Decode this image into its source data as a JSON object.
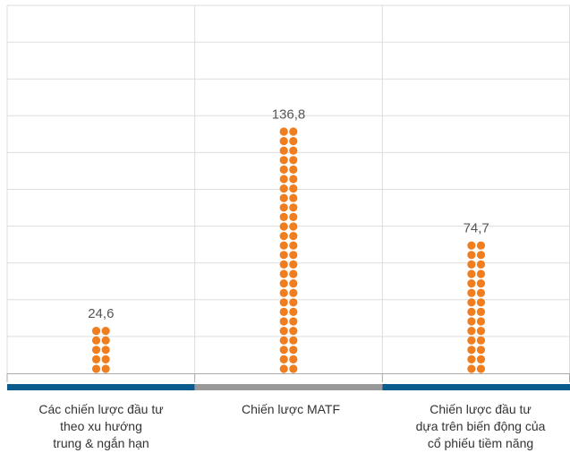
{
  "chart_data": {
    "type": "bar",
    "style": "dot-column",
    "categories": [
      "Các chiến lược đầu tư\ntheo xu hướng\ntrung & ngắn hạn",
      "Chiến lược MATF",
      "Chiến lược đầu tư\ndựa trên biến động của\ncổ phiếu tiềm năng"
    ],
    "values": [
      24.6,
      136.8,
      74.7
    ],
    "value_labels": [
      "24,6",
      "136,8",
      "74,7"
    ],
    "ylim": [
      0,
      150
    ],
    "grid": true,
    "colors": {
      "dots": "#F07D1E",
      "band_outer": "#0A5C8C",
      "band_middle": "#999999",
      "grid": "#DDDDDD"
    }
  }
}
